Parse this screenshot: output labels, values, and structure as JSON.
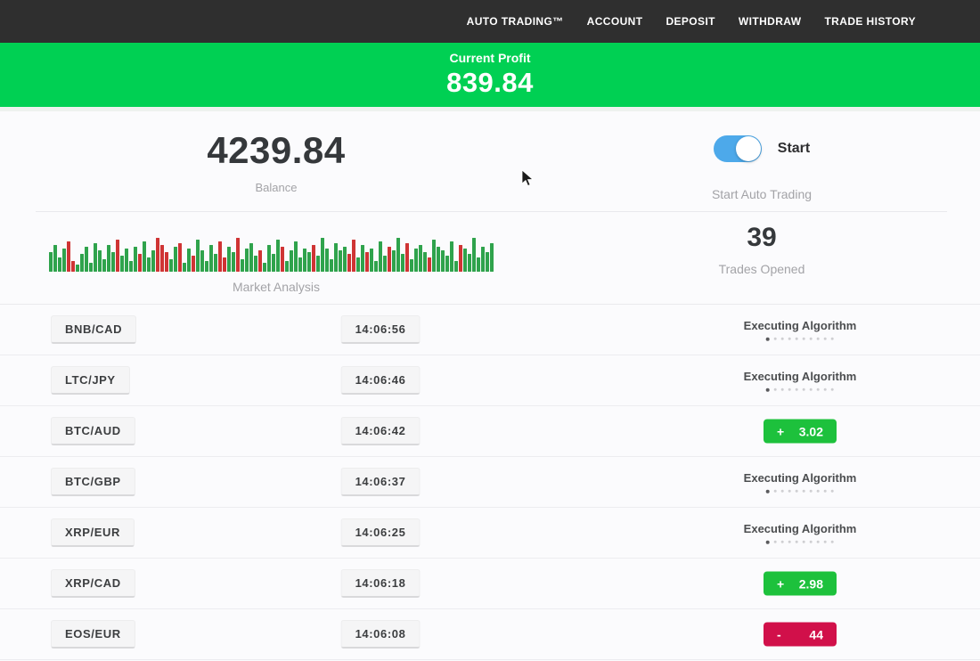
{
  "navbar": {
    "items": [
      {
        "label": "AUTO TRADING™"
      },
      {
        "label": "ACCOUNT"
      },
      {
        "label": "DEPOSIT"
      },
      {
        "label": "WITHDRAW"
      },
      {
        "label": "TRADE HISTORY"
      }
    ]
  },
  "profit_banner": {
    "label": "Current Profit",
    "value": "839.84"
  },
  "account": {
    "balance": "4239.84",
    "balance_label": "Balance",
    "toggle_label": "Start",
    "toggle_caption": "Start Auto Trading",
    "toggle_on": true
  },
  "market": {
    "label": "Market Analysis",
    "trades_opened": "39",
    "trades_label": "Trades Opened",
    "bar_colors": {
      "g": "#2fa34c",
      "r": "#cf3434"
    },
    "bars": [
      [
        22,
        "g"
      ],
      [
        30,
        "g"
      ],
      [
        16,
        "g"
      ],
      [
        26,
        "g"
      ],
      [
        34,
        "r"
      ],
      [
        12,
        "r"
      ],
      [
        8,
        "g"
      ],
      [
        20,
        "g"
      ],
      [
        28,
        "g"
      ],
      [
        10,
        "g"
      ],
      [
        32,
        "g"
      ],
      [
        24,
        "g"
      ],
      [
        14,
        "g"
      ],
      [
        30,
        "g"
      ],
      [
        22,
        "g"
      ],
      [
        36,
        "r"
      ],
      [
        18,
        "g"
      ],
      [
        26,
        "g"
      ],
      [
        12,
        "g"
      ],
      [
        28,
        "g"
      ],
      [
        20,
        "r"
      ],
      [
        34,
        "g"
      ],
      [
        16,
        "g"
      ],
      [
        24,
        "g"
      ],
      [
        38,
        "r"
      ],
      [
        30,
        "r"
      ],
      [
        22,
        "r"
      ],
      [
        14,
        "g"
      ],
      [
        28,
        "g"
      ],
      [
        32,
        "r"
      ],
      [
        10,
        "g"
      ],
      [
        26,
        "g"
      ],
      [
        18,
        "r"
      ],
      [
        36,
        "g"
      ],
      [
        24,
        "g"
      ],
      [
        12,
        "g"
      ],
      [
        30,
        "g"
      ],
      [
        20,
        "g"
      ],
      [
        34,
        "r"
      ],
      [
        16,
        "r"
      ],
      [
        28,
        "g"
      ],
      [
        22,
        "g"
      ],
      [
        38,
        "r"
      ],
      [
        14,
        "g"
      ],
      [
        26,
        "g"
      ],
      [
        32,
        "g"
      ],
      [
        18,
        "g"
      ],
      [
        24,
        "r"
      ],
      [
        10,
        "g"
      ],
      [
        30,
        "g"
      ],
      [
        20,
        "g"
      ],
      [
        36,
        "g"
      ],
      [
        28,
        "r"
      ],
      [
        12,
        "g"
      ],
      [
        24,
        "g"
      ],
      [
        34,
        "g"
      ],
      [
        16,
        "g"
      ],
      [
        26,
        "g"
      ],
      [
        22,
        "g"
      ],
      [
        30,
        "r"
      ],
      [
        18,
        "g"
      ],
      [
        38,
        "g"
      ],
      [
        26,
        "g"
      ],
      [
        14,
        "g"
      ],
      [
        32,
        "g"
      ],
      [
        24,
        "g"
      ],
      [
        28,
        "g"
      ],
      [
        20,
        "r"
      ],
      [
        36,
        "r"
      ],
      [
        16,
        "g"
      ],
      [
        30,
        "g"
      ],
      [
        22,
        "r"
      ],
      [
        26,
        "g"
      ],
      [
        12,
        "g"
      ],
      [
        34,
        "g"
      ],
      [
        18,
        "g"
      ],
      [
        28,
        "r"
      ],
      [
        24,
        "g"
      ],
      [
        38,
        "g"
      ],
      [
        20,
        "g"
      ],
      [
        32,
        "r"
      ],
      [
        14,
        "g"
      ],
      [
        26,
        "g"
      ],
      [
        30,
        "g"
      ],
      [
        22,
        "g"
      ],
      [
        16,
        "r"
      ],
      [
        36,
        "g"
      ],
      [
        28,
        "g"
      ],
      [
        24,
        "g"
      ],
      [
        18,
        "g"
      ],
      [
        34,
        "g"
      ],
      [
        12,
        "g"
      ],
      [
        30,
        "r"
      ],
      [
        26,
        "g"
      ],
      [
        20,
        "g"
      ],
      [
        38,
        "g"
      ],
      [
        16,
        "g"
      ],
      [
        28,
        "g"
      ],
      [
        22,
        "g"
      ],
      [
        32,
        "g"
      ]
    ]
  },
  "table": {
    "executing_dots": {
      "count": 10,
      "active_index": 0
    },
    "rows": [
      {
        "pair": "BNB/CAD",
        "time": "14:06:56",
        "status": {
          "type": "executing",
          "label": "Executing Algorithm"
        }
      },
      {
        "pair": "LTC/JPY",
        "time": "14:06:46",
        "status": {
          "type": "executing",
          "label": "Executing Algorithm"
        }
      },
      {
        "pair": "BTC/AUD",
        "time": "14:06:42",
        "status": {
          "type": "result",
          "kind": "profit",
          "sign": "+",
          "value": "3.02"
        }
      },
      {
        "pair": "BTC/GBP",
        "time": "14:06:37",
        "status": {
          "type": "executing",
          "label": "Executing Algorithm"
        }
      },
      {
        "pair": "XRP/EUR",
        "time": "14:06:25",
        "status": {
          "type": "executing",
          "label": "Executing Algorithm"
        }
      },
      {
        "pair": "XRP/CAD",
        "time": "14:06:18",
        "status": {
          "type": "result",
          "kind": "profit",
          "sign": "+",
          "value": "2.98"
        }
      },
      {
        "pair": "EOS/EUR",
        "time": "14:06:08",
        "status": {
          "type": "result",
          "kind": "loss",
          "sign": "-",
          "value": "44"
        }
      }
    ]
  },
  "colors": {
    "navbar-bg": "#2f2f2f",
    "banner-green": "#00d053",
    "badge-green": "#1dc13c",
    "badge-red": "#d1104a",
    "toggle-blue": "#4da9ea",
    "page-bg": "#fbfbfd"
  }
}
